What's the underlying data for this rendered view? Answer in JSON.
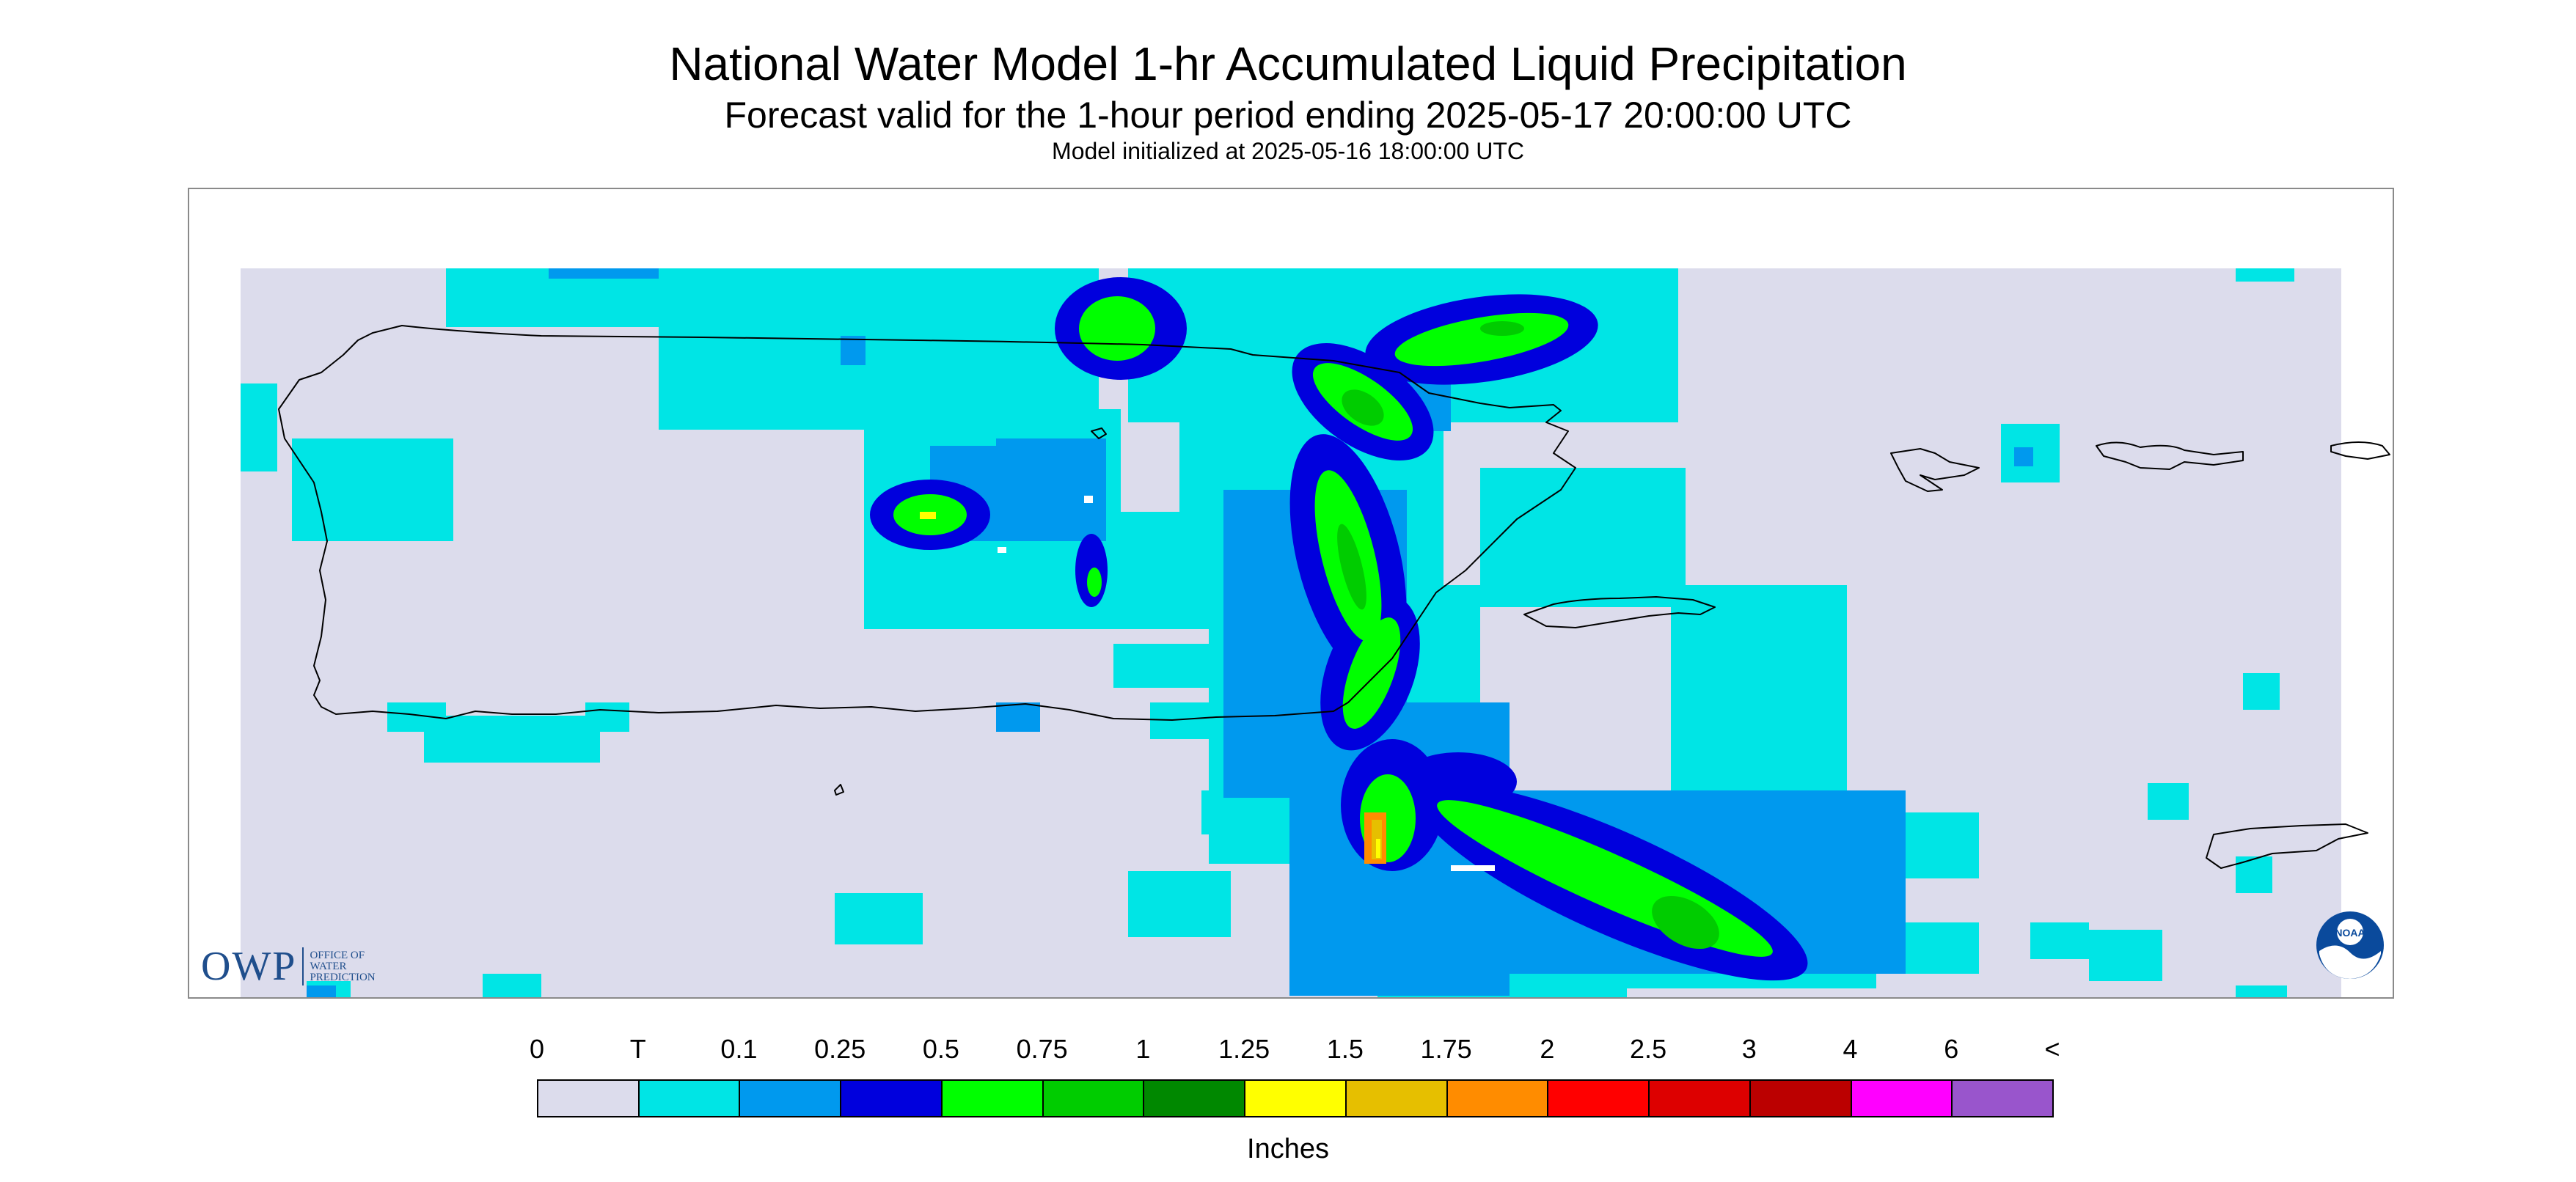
{
  "title": "National Water Model 1-hr Accumulated Liquid Precipitation",
  "subtitle": "Forecast valid for the 1-hour period ending 2025-05-17 20:00:00 UTC",
  "initialized": "Model initialized at 2025-05-16 18:00:00 UTC",
  "logo": {
    "owp_letters": "OWP",
    "owp_text": [
      "OFFICE OF",
      "WATER",
      "PREDICTION"
    ],
    "noaa_text": "NOAA"
  },
  "legend": {
    "labels": [
      "0",
      "T",
      "0.1",
      "0.25",
      "0.5",
      "0.75",
      "1",
      "1.25",
      "1.5",
      "1.75",
      "2",
      "2.5",
      "3",
      "4",
      "6",
      "<"
    ],
    "colors": [
      "#dcdcec",
      "#00e5e5",
      "#0099ee",
      "#0000dd",
      "#00ff00",
      "#00cc00",
      "#008800",
      "#ffff00",
      "#e6bf00",
      "#ff8c00",
      "#ff0000",
      "#dd0000",
      "#bb0000",
      "#ff00ff",
      "#9955cc"
    ],
    "units": "Inches"
  },
  "map_colors": {
    "background": "#dcdcec",
    "trace": "#00e5e5",
    "light_blue": "#0099ee",
    "blue": "#0000dd",
    "green": "#00ff00",
    "mid_green": "#00cc00",
    "dark_green": "#008800",
    "yellow": "#ffff00",
    "gold": "#e6bf00",
    "orange": "#ff8c00",
    "coastline": "#000000"
  }
}
